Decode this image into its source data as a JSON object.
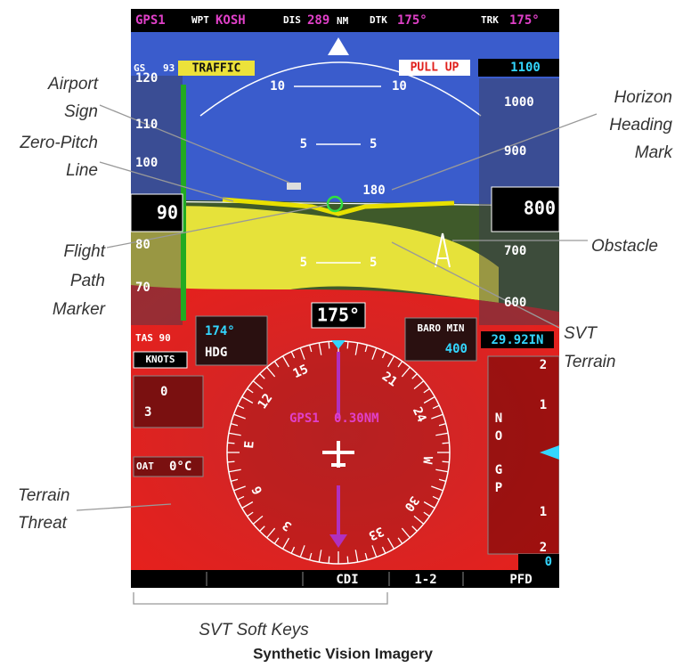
{
  "top_bar": {
    "gps": "GPS1",
    "wpt_label": "WPT",
    "wpt": "KOSH",
    "dis_label": "DIS",
    "dis": "289",
    "dis_unit": "NM",
    "dtk_label": "DTK",
    "dtk": "175°",
    "trk_label": "TRK",
    "trk": "175°"
  },
  "pfd": {
    "gs_label": "GS",
    "gs": "93",
    "traffic": "TRAFFIC",
    "pull_up": "PULL UP",
    "selected_altitude": "1100",
    "airspeed_tape": [
      "120",
      "110",
      "100",
      "80",
      "70"
    ],
    "airspeed": "90",
    "altitude_tape": [
      "1000",
      "900",
      "700",
      "600"
    ],
    "altitude": "800",
    "pitch_labels": [
      "10",
      "10",
      "5",
      "5",
      "5",
      "5"
    ],
    "horizon_heading": "180",
    "tas": "TAS 90",
    "tas_unit": "KNOTS",
    "selected_heading": "174°",
    "hdg_label": "HDG",
    "heading": "175°",
    "baro_min_label": "BARO MIN",
    "baro_min": "400",
    "baro": "29.92IN",
    "compass": [
      "15",
      "12",
      "E",
      "6",
      "3",
      "33",
      "30",
      "W",
      "24",
      "21"
    ],
    "nav_source": "GPS1",
    "nav_distance": "0.30NM",
    "wind": [
      "0",
      "3"
    ],
    "oat_label": "OAT",
    "oat": "0°C",
    "vdi": [
      "N",
      "O",
      "G",
      "P"
    ],
    "vsi_scale": [
      "2",
      "1",
      "1",
      "2"
    ],
    "vertical_speed": "0"
  },
  "softkeys": [
    "CDI",
    "1-2",
    "PFD"
  ],
  "annotations": {
    "airport_sign": [
      "Airport",
      "Sign"
    ],
    "zero_pitch_line": [
      "Zero-Pitch",
      "Line"
    ],
    "flight_path_marker": [
      "Flight",
      "Path",
      "Marker"
    ],
    "horizon_heading_mark": [
      "Horizon",
      "Heading",
      "Mark"
    ],
    "obstacle": "Obstacle",
    "svt_terrain": [
      "SVT",
      "Terrain"
    ],
    "terrain_threat": [
      "Terrain",
      "Threat"
    ],
    "svt_soft_keys": "SVT Soft Keys"
  },
  "caption": "Synthetic Vision Imagery"
}
